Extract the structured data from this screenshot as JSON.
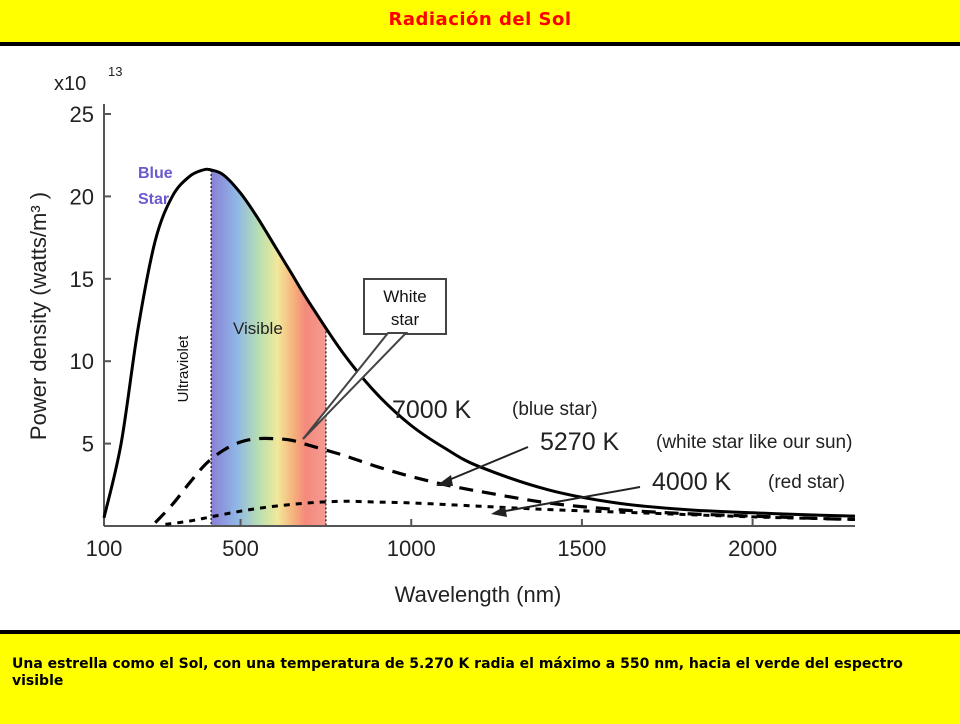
{
  "page": {
    "title": "Radiación del Sol",
    "caption": "Una estrella como el Sol, con una temperatura de 5.270 K radia el máximo a 550 nm, hacia el verde del espectro visible"
  },
  "colors": {
    "header_bg": "#ffff00",
    "title": "#ff0000",
    "blue_star_label": "#6a5acd"
  },
  "chart_data": {
    "type": "line",
    "xlabel": "Wavelength (nm)",
    "ylabel": "Power density (watts/m³ )",
    "y_multiplier_base": "x10",
    "y_multiplier_exp": "13",
    "xlim": [
      100,
      2300
    ],
    "ylim": [
      0,
      25
    ],
    "x_ticks": [
      "100",
      "500",
      "1000",
      "1500",
      "2000"
    ],
    "y_ticks": [
      "5",
      "10",
      "15",
      "20",
      "25"
    ],
    "series": [
      {
        "name": "7000 K",
        "label": "(blue star)",
        "style": "solid",
        "x": [
          100,
          150,
          200,
          250,
          300,
          350,
          390,
          414,
          450,
          500,
          550,
          600,
          650,
          700,
          800,
          900,
          1000,
          1100,
          1200,
          1400,
          1600,
          1800,
          2000,
          2200,
          2300
        ],
        "y": [
          0.5,
          5.0,
          12.0,
          17.3,
          20.0,
          21.2,
          21.6,
          21.6,
          21.3,
          20.2,
          18.7,
          17.0,
          15.3,
          13.6,
          10.5,
          8.0,
          6.1,
          4.7,
          3.6,
          2.2,
          1.4,
          1.0,
          0.8,
          0.65,
          0.6
        ]
      },
      {
        "name": "5270 K",
        "label": "(white star like our sun)",
        "style": "dashed",
        "x": [
          250,
          300,
          350,
          400,
          450,
          500,
          550,
          600,
          650,
          700,
          800,
          900,
          1000,
          1100,
          1200,
          1400,
          1600,
          1800,
          2000,
          2200,
          2300
        ],
        "y": [
          0.2,
          1.3,
          2.6,
          3.8,
          4.6,
          5.1,
          5.3,
          5.3,
          5.2,
          4.9,
          4.3,
          3.6,
          3.0,
          2.5,
          2.1,
          1.4,
          1.0,
          0.75,
          0.6,
          0.45,
          0.4
        ]
      },
      {
        "name": "4000 K",
        "label": "(red star)",
        "style": "dotted",
        "x": [
          280,
          350,
          400,
          500,
          600,
          700,
          800,
          900,
          1000,
          1200,
          1400,
          1600,
          1800,
          2000,
          2200,
          2300
        ],
        "y": [
          0.1,
          0.3,
          0.5,
          0.9,
          1.2,
          1.4,
          1.5,
          1.45,
          1.4,
          1.2,
          1.0,
          0.85,
          0.7,
          0.55,
          0.45,
          0.4
        ]
      }
    ],
    "bands": {
      "ultraviolet_label": "Ultraviolet",
      "visible_label": "Visible",
      "visible_range": [
        414,
        750
      ]
    },
    "annotations": {
      "blue_star": [
        "Blue",
        "Star"
      ],
      "white_star": [
        "White",
        "star"
      ]
    }
  }
}
